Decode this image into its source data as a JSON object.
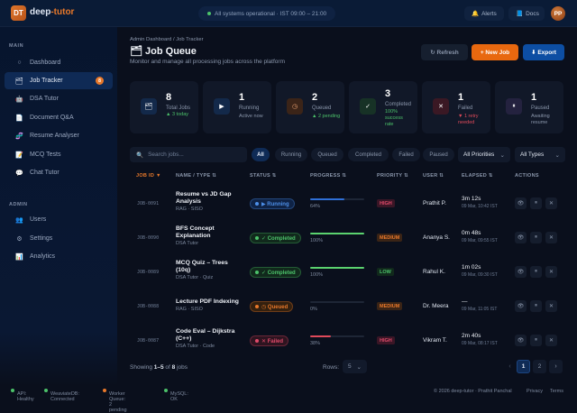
{
  "header": {
    "logo": "DT",
    "brand_main": "deep",
    "brand_accent": "-tutor",
    "status": "All systems operational · IST 09:00 – 21:00",
    "alerts": "Alerts",
    "docs": "Docs",
    "avatar": "PP"
  },
  "sidebar": {
    "main_label": "MAIN",
    "admin_label": "ADMIN",
    "main_items": [
      {
        "icon": "○",
        "label": "Dashboard"
      },
      {
        "icon": "🗂",
        "label": "Job Tracker",
        "badge": "8"
      },
      {
        "icon": "🤖",
        "label": "DSA Tutor"
      },
      {
        "icon": "📄",
        "label": "Document Q&A"
      },
      {
        "icon": "🧬",
        "label": "Resume Analyser"
      },
      {
        "icon": "📝",
        "label": "MCQ Tests"
      },
      {
        "icon": "💬",
        "label": "Chat Tutor"
      }
    ],
    "admin_items": [
      {
        "icon": "👥",
        "label": "Users"
      },
      {
        "icon": "⚙",
        "label": "Settings"
      },
      {
        "icon": "📊",
        "label": "Analytics"
      }
    ]
  },
  "page": {
    "breadcrumb": "Admin Dashboard / Job Tracker",
    "title": "🗂 Job Queue",
    "subtitle": "Monitor and manage all processing jobs across the platform",
    "refresh": "↻ Refresh",
    "new_job": "+ New Job",
    "export": "⬇ Export"
  },
  "stats": [
    {
      "num": "8",
      "label": "Total Jobs",
      "sub": "▲ 3 today",
      "icon": "🗂",
      "sub_color": "#4cc26a",
      "icon_bg": "#13294a"
    },
    {
      "num": "1",
      "label": "Running",
      "sub": "Active now",
      "icon": "▶",
      "sub_color": "#8a96ab",
      "icon_bg": "#13294a"
    },
    {
      "num": "2",
      "label": "Queued",
      "sub": "▲ 2 pending",
      "icon": "◷",
      "sub_color": "#4cc26a",
      "icon_bg": "#3b2418"
    },
    {
      "num": "3",
      "label": "Completed",
      "sub": "100% success rate",
      "icon": "✓",
      "sub_color": "#4cc26a",
      "icon_bg": "#173226"
    },
    {
      "num": "1",
      "label": "Failed",
      "sub": "▼ 1 retry needed",
      "icon": "✕",
      "sub_color": "#e04a5a",
      "icon_bg": "#3a1824"
    },
    {
      "num": "1",
      "label": "Paused",
      "sub": "Awaiting resume",
      "icon": "⏸",
      "sub_color": "#8a96ab",
      "icon_bg": "#24223f"
    }
  ],
  "filters": {
    "search_placeholder": "Search jobs...",
    "chips": [
      "All",
      "Running",
      "Queued",
      "Completed",
      "Failed",
      "Paused"
    ],
    "priority": "All Priorities",
    "type": "All Types"
  },
  "table": {
    "columns": [
      "JOB ID ▼",
      "NAME / TYPE ⇅",
      "STATUS ⇅",
      "PROGRESS ⇅",
      "PRIORITY ⇅",
      "USER ⇅",
      "ELAPSED ⇅",
      "ACTIONS"
    ],
    "rows": [
      {
        "id": "JOB-0091",
        "name": "Resume vs JD Gap Analysis",
        "type": "RAG · SISO",
        "status": "▶ Running",
        "status_fg": "#4d8fe8",
        "status_bg": "#0f2346",
        "progress": 64,
        "pct": "64%",
        "bar": "#2f6fd6",
        "priority": "HIGH",
        "prio_fg": "#e04a6a",
        "prio_bg": "#3a1626",
        "user": "Prathit P.",
        "elapsed": "3m 12s",
        "ts": "09 Mar, 10:42 IST"
      },
      {
        "id": "JOB-0090",
        "name": "BFS Concept Explanation",
        "type": "DSA Tutor",
        "status": "✓ Completed",
        "status_fg": "#4cc26a",
        "status_bg": "#11291c",
        "progress": 100,
        "pct": "100%",
        "bar": "#5bd36f",
        "priority": "MEDIUM",
        "prio_fg": "#e8782a",
        "prio_bg": "#3a2416",
        "user": "Ananya S.",
        "elapsed": "0m 48s",
        "ts": "09 Mar, 09:55 IST"
      },
      {
        "id": "JOB-0089",
        "name": "MCQ Quiz – Trees (10q)",
        "type": "DSA Tutor · Quiz",
        "status": "✓ Completed",
        "status_fg": "#4cc26a",
        "status_bg": "#11291c",
        "progress": 100,
        "pct": "100%",
        "bar": "#5bd36f",
        "priority": "LOW",
        "prio_fg": "#4cc26a",
        "prio_bg": "#11291c",
        "user": "Rahul K.",
        "elapsed": "1m 02s",
        "ts": "09 Mar, 09:30 IST"
      },
      {
        "id": "JOB-0088",
        "name": "Lecture PDF Indexing",
        "type": "RAG · SISO",
        "status": "◷ Queued",
        "status_fg": "#e8782a",
        "status_bg": "#33200f",
        "progress": 0,
        "pct": "0%",
        "bar": "#2f6fd6",
        "priority": "MEDIUM",
        "prio_fg": "#e8782a",
        "prio_bg": "#3a2416",
        "user": "Dr. Meera",
        "elapsed": "—",
        "ts": "09 Mar, 11:05 IST"
      },
      {
        "id": "JOB-0087",
        "name": "Code Eval – Dijkstra (C++)",
        "type": "DSA Tutor · Code",
        "status": "✕ Failed",
        "status_fg": "#e04a6a",
        "status_bg": "#2e1420",
        "progress": 38,
        "pct": "38%",
        "bar": "#e04a5a",
        "priority": "HIGH",
        "prio_fg": "#e04a6a",
        "prio_bg": "#3a1626",
        "user": "Vikram T.",
        "elapsed": "2m 40s",
        "ts": "09 Mar, 08:17 IST"
      }
    ],
    "actions": [
      "👁",
      "⏸",
      "✕"
    ]
  },
  "pagination": {
    "showing_prefix": "Showing ",
    "range": "1–5",
    "of": " of ",
    "total": "8",
    "suffix": " jobs",
    "rows_label": "Rows:",
    "rows_value": "5",
    "prev": "‹",
    "pages": [
      "1",
      "2"
    ],
    "next": "›"
  },
  "footer": {
    "api": "API: Healthy",
    "weaviate": "WeaviateDB: Connected",
    "worker": "Worker Queue: 2 pending",
    "mysql": "MySQL: OK",
    "copyright": "© 2026 deep-tutor · Prathit Panchal",
    "privacy": "Privacy",
    "terms": "Terms"
  }
}
